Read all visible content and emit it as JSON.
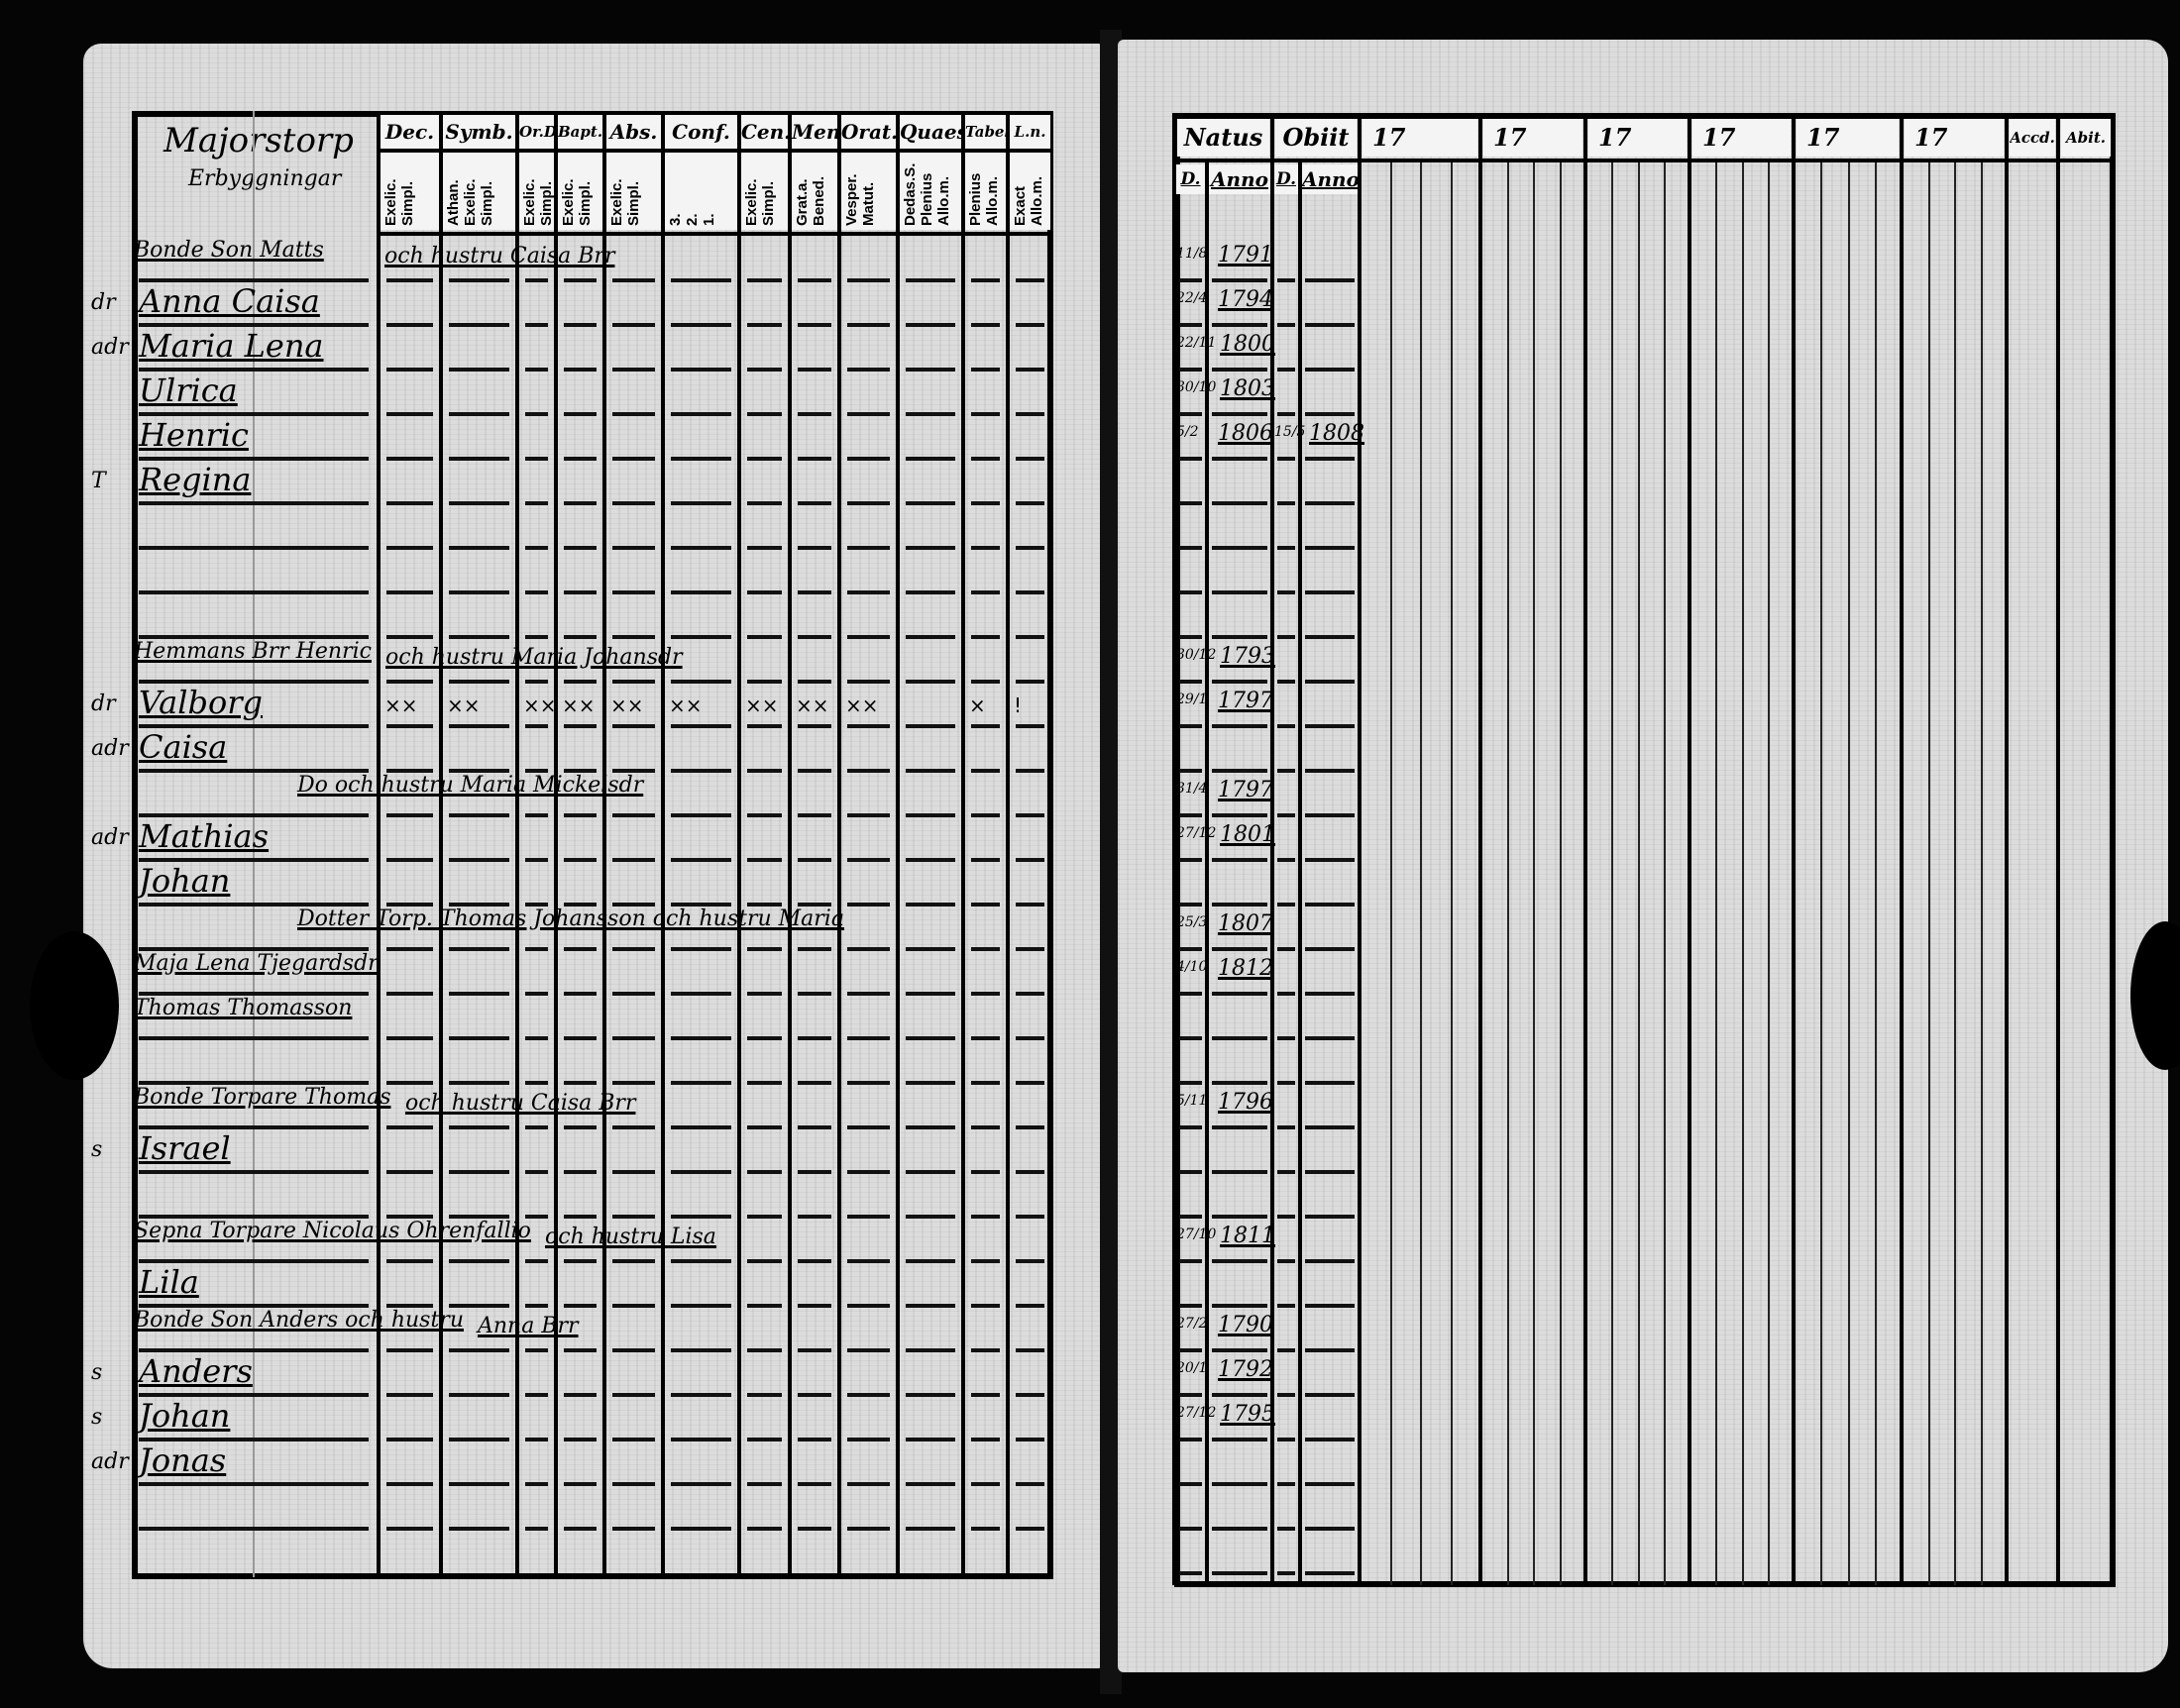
{
  "left_page": {
    "name_column_title": [
      "Majorstorp",
      "Erbyggningar"
    ],
    "header_row1": [
      "Dec.",
      "Symb.",
      "Or.D",
      "Bapt.",
      "Abs.",
      "Conf.",
      "Cen.D",
      "Mensl.",
      "Orat.",
      "Quaest.",
      "Tabel.",
      "L.n."
    ],
    "header_row2": [
      "Exelic.\nSimpl.",
      "Athan.\nExelic.\nSimpl.",
      "Exelic.\nSimpl.",
      "Exelic.\nSimpl.",
      "Exelic.\nSimpl.",
      "3.\n2.\n1.",
      "Exelic.\nSimpl.",
      "Grat.a.\nBened.",
      "Vesper.\nMatut.",
      "Dedas.S.\nPlenius\nAllo.m.",
      "Plenius\nAllo.m.",
      "Exact\nAllo.m."
    ],
    "entries": [
      {
        "row": 0,
        "text": "Bonde Son Matts",
        "cont": "och hustru Caisa Brr",
        "margin": ""
      },
      {
        "row": 1,
        "text": "Anna Caisa",
        "margin": "dr"
      },
      {
        "row": 2,
        "text": "Maria Lena",
        "margin": "adr"
      },
      {
        "row": 3,
        "text": "Ulrica",
        "margin": ""
      },
      {
        "row": 4,
        "text": "Henric",
        "margin": ""
      },
      {
        "row": 5,
        "text": "Regina",
        "margin": "T"
      },
      {
        "row": 9,
        "text": "Hemmans Brr Henric",
        "cont": "och hustru Maria Johansdr",
        "margin": ""
      },
      {
        "row": 10,
        "text": "Valborg",
        "margin": "dr"
      },
      {
        "row": 11,
        "text": "Caisa",
        "margin": "adr"
      },
      {
        "row": 12,
        "text": "Do och hustru Maria Mickelsdr",
        "indent": true,
        "margin": ""
      },
      {
        "row": 13,
        "text": "Mathias",
        "margin": "adr"
      },
      {
        "row": 14,
        "text": "Johan",
        "margin": ""
      },
      {
        "row": 15,
        "text": "Dotter Torp. Thomas Johansson och hustru Maria",
        "indent": true,
        "margin": ""
      },
      {
        "row": 16,
        "text": "Maja Lena Tjegardsdr",
        "margin": ""
      },
      {
        "row": 17,
        "text": "Thomas Thomasson",
        "margin": ""
      },
      {
        "row": 19,
        "text": "Bonde Torpare Thomas",
        "cont": "och hustru Caisa Brr",
        "margin": ""
      },
      {
        "row": 20,
        "text": "Israel",
        "margin": "s"
      },
      {
        "row": 22,
        "text": "Sepna Torpare Nicolaus Ohrenfallio",
        "cont": "och hustru Lisa",
        "margin": ""
      },
      {
        "row": 23,
        "text": "Lila",
        "margin": ""
      },
      {
        "row": 24,
        "text": "Bonde Son Anders och hustru",
        "cont": "Anna Brr",
        "margin": ""
      },
      {
        "row": 25,
        "text": "Anders",
        "margin": "s"
      },
      {
        "row": 26,
        "text": "Johan",
        "margin": "s"
      },
      {
        "row": 27,
        "text": "Jonas",
        "margin": "adr"
      }
    ],
    "valborg_marks": [
      "××",
      "××",
      "××",
      "××",
      "××",
      "××",
      "××",
      "××",
      "××",
      "",
      "×",
      "!"
    ]
  },
  "right_page": {
    "header_row1": [
      "Natus",
      "Obiit",
      "17",
      "17",
      "17",
      "17",
      "17",
      "17",
      "Accd.",
      "Abit."
    ],
    "header_row2": [
      "D.",
      "Anno",
      "D.",
      "Anno"
    ],
    "records": [
      {
        "row": 1,
        "day": "11/8",
        "year": "1791"
      },
      {
        "row": 2,
        "day": "22/4",
        "year": "1794"
      },
      {
        "row": 3,
        "day": "22/11",
        "year": "1800"
      },
      {
        "row": 4,
        "day": "30/10",
        "year": "1803"
      },
      {
        "row": 5,
        "day": "5/2",
        "year": "1806",
        "obiit_day": "15/5",
        "obiit_year": "1808"
      },
      {
        "row": 10,
        "day": "30/12",
        "year": "1793"
      },
      {
        "row": 11,
        "day": "29/1",
        "year": "1797"
      },
      {
        "row": 13,
        "day": "31/4",
        "year": "1797"
      },
      {
        "row": 14,
        "day": "27/12",
        "year": "1801"
      },
      {
        "row": 16,
        "day": "25/3",
        "year": "1807"
      },
      {
        "row": 17,
        "day": "4/10",
        "year": "1812"
      },
      {
        "row": 20,
        "day": "5/11",
        "year": "1796"
      },
      {
        "row": 23,
        "day": "27/10",
        "year": "1811"
      },
      {
        "row": 25,
        "day": "27/2",
        "year": "1790"
      },
      {
        "row": 26,
        "day": "20/1",
        "year": "1792"
      },
      {
        "row": 27,
        "day": "27/12",
        "year": "1795"
      }
    ]
  }
}
